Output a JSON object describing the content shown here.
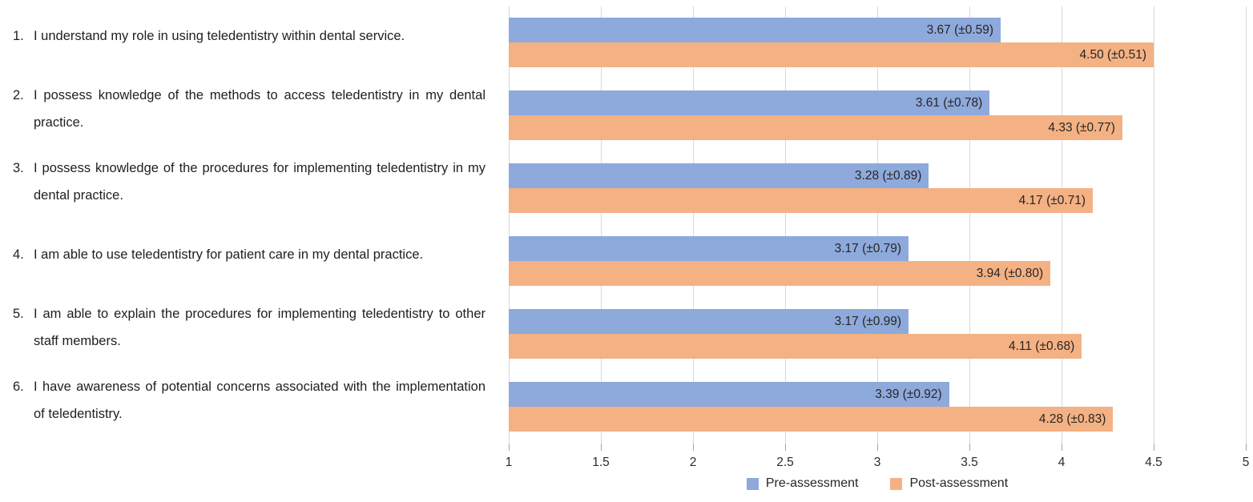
{
  "statements": [
    {
      "number": "1.",
      "text": "I understand my role in using teledentistry within dental service."
    },
    {
      "number": "2.",
      "text": "I possess knowledge of the methods to access teledentistry in my dental practice."
    },
    {
      "number": "3.",
      "text": "I possess knowledge of the procedures for implementing teledentistry in my dental practice."
    },
    {
      "number": "4.",
      "text": "I am able to use teledentistry for patient care in my dental practice."
    },
    {
      "number": "5.",
      "text": "I am able to explain the procedures for implementing teledentistry to other staff members."
    },
    {
      "number": "6.",
      "text": "I have awareness of potential concerns associated with the implementation of teledentistry."
    }
  ],
  "chart_data": {
    "type": "bar",
    "orientation": "horizontal",
    "categories": [
      "I understand my role in using teledentistry within dental service.",
      "I possess knowledge of the methods to access teledentistry in my dental practice.",
      "I possess knowledge of the procedures for implementing teledentistry in my dental practice.",
      "I am able to use teledentistry for patient care in my dental practice.",
      "I am able to explain the procedures for implementing teledentistry to other staff members.",
      "I have awareness of potential concerns associated with the implementation of teledentistry."
    ],
    "series": [
      {
        "name": "Pre-assessment",
        "color": "#8EA9DB",
        "values": [
          3.67,
          3.61,
          3.28,
          3.17,
          3.17,
          3.39
        ],
        "sd": [
          0.59,
          0.78,
          0.89,
          0.79,
          0.99,
          0.92
        ],
        "labels": [
          "3.67 (±0.59)",
          "3.61 (±0.78)",
          "3.28 (±0.89)",
          "3.17 (±0.79)",
          "3.17 (±0.99)",
          "3.39 (±0.92)"
        ]
      },
      {
        "name": "Post-assessment",
        "color": "#F4B183",
        "values": [
          4.5,
          4.33,
          4.17,
          3.94,
          4.11,
          4.28
        ],
        "sd": [
          0.51,
          0.77,
          0.71,
          0.8,
          0.68,
          0.83
        ],
        "labels": [
          "4.50 (±0.51)",
          "4.33 (±0.77)",
          "4.17 (±0.71)",
          "3.94 (±0.80)",
          "4.11 (±0.68)",
          "4.28 (±0.83)"
        ]
      }
    ],
    "xlim": [
      1,
      5
    ],
    "xticks": [
      1,
      1.5,
      2,
      2.5,
      3,
      3.5,
      4,
      4.5,
      5
    ],
    "xtick_labels": [
      "1",
      "1.5",
      "2",
      "2.5",
      "3",
      "3.5",
      "4",
      "4.5",
      "5"
    ],
    "grid": true,
    "legend_position": "bottom",
    "gridline_color": "#d9d9d9"
  }
}
